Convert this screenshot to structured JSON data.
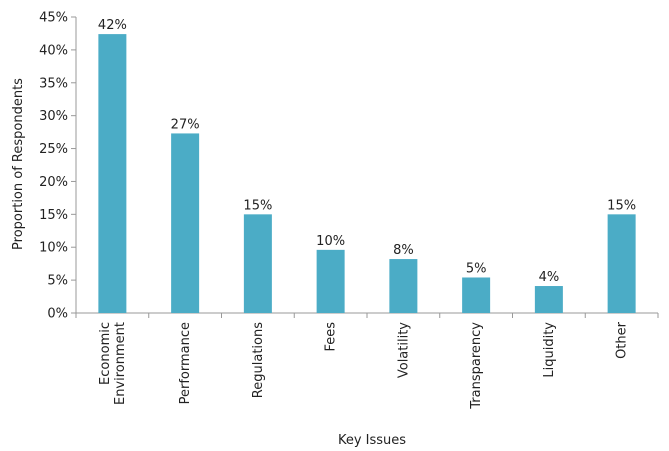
{
  "chart_data": {
    "type": "bar",
    "categories": [
      "Economic Environment",
      "Performance",
      "Regulations",
      "Fees",
      "Volatility",
      "Transparency",
      "Liquidity",
      "Other"
    ],
    "category_lines": [
      [
        "Economic",
        "Environment"
      ],
      [
        "Performance"
      ],
      [
        "Regulations"
      ],
      [
        "Fees"
      ],
      [
        "Volatility"
      ],
      [
        "Transparency"
      ],
      [
        "Liquidity"
      ],
      [
        "Other"
      ]
    ],
    "values": [
      42.4,
      27.3,
      15.0,
      9.6,
      8.2,
      5.4,
      4.1,
      15.0
    ],
    "data_labels": [
      "42%",
      "27%",
      "15%",
      "10%",
      "8%",
      "5%",
      "4%",
      "15%"
    ],
    "title": "",
    "xlabel": "Key Issues",
    "ylabel": "Proportion of Respondents",
    "ylim": [
      0,
      45
    ],
    "yticks": [
      0,
      5,
      10,
      15,
      20,
      25,
      30,
      35,
      40,
      45
    ],
    "ytick_labels": [
      "0%",
      "5%",
      "10%",
      "15%",
      "20%",
      "25%",
      "30%",
      "35%",
      "40%",
      "45%"
    ],
    "grid": false,
    "legend": "none",
    "bar_color": "#4bacc6",
    "axis_color": "#999999"
  }
}
